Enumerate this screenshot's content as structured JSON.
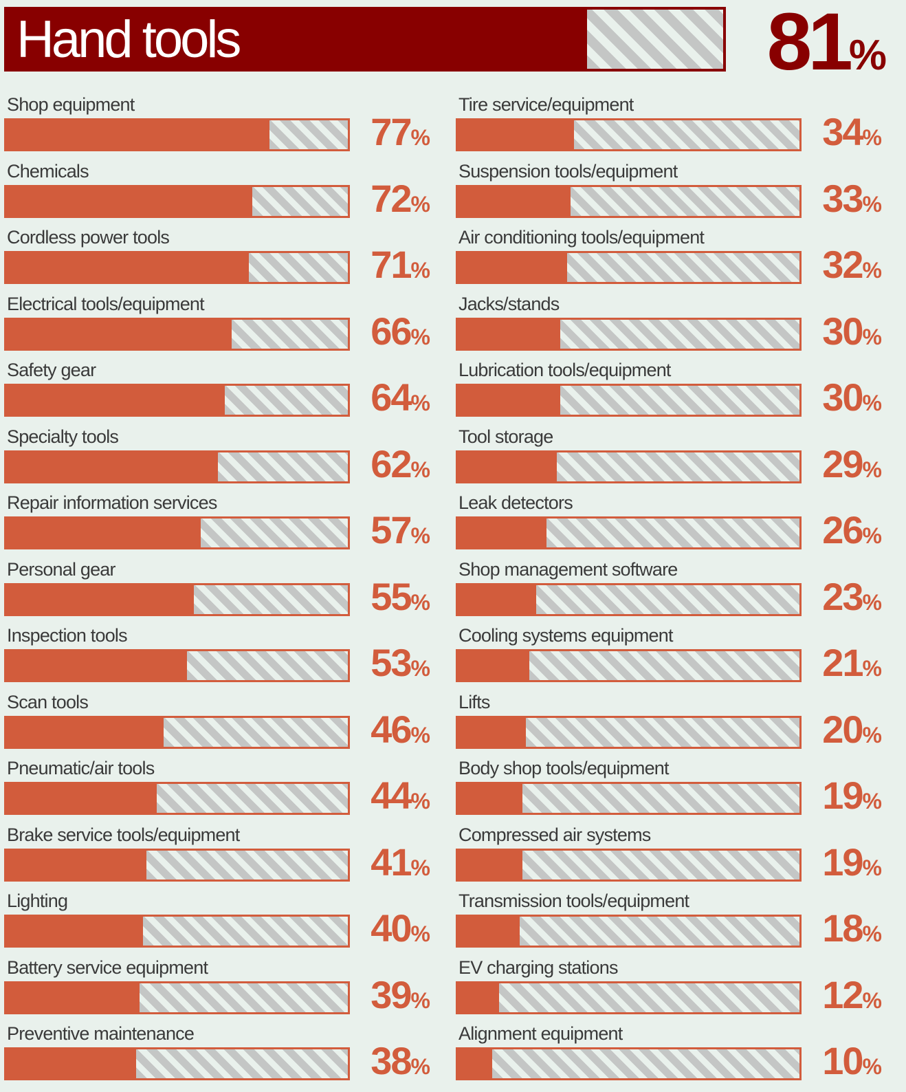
{
  "chart_data": {
    "type": "bar",
    "header": {
      "category": "Hand tools",
      "value": 81
    },
    "unit_label": "%",
    "xlim": [
      0,
      100
    ],
    "columns": [
      {
        "categories": [
          "Shop equipment",
          "Chemicals",
          "Cordless power tools",
          "Electrical tools/equipment",
          "Safety gear",
          "Specialty tools",
          "Repair information services",
          "Personal gear",
          "Inspection tools",
          "Scan tools",
          "Pneumatic/air tools",
          "Brake service tools/equipment",
          "Lighting",
          "Battery service equipment",
          "Preventive maintenance"
        ],
        "values": [
          77,
          72,
          71,
          66,
          64,
          62,
          57,
          55,
          53,
          46,
          44,
          41,
          40,
          39,
          38
        ]
      },
      {
        "categories": [
          "Tire service/equipment",
          "Suspension tools/equipment",
          "Air conditioning tools/equipment",
          "Jacks/stands",
          "Lubrication tools/equipment",
          "Tool storage",
          "Leak detectors",
          "Shop management software",
          "Cooling systems equipment",
          "Lifts",
          "Body shop tools/equipment",
          "Compressed air systems",
          "Transmission tools/equipment",
          "EV charging stations",
          "Alignment equipment"
        ],
        "values": [
          34,
          33,
          32,
          30,
          30,
          29,
          26,
          23,
          21,
          20,
          19,
          19,
          18,
          12,
          10
        ]
      }
    ],
    "colors": {
      "header": "#880000",
      "bar": "#d25c3c",
      "hatch": "#c4c6c5",
      "background": "#e9f1ec"
    }
  }
}
